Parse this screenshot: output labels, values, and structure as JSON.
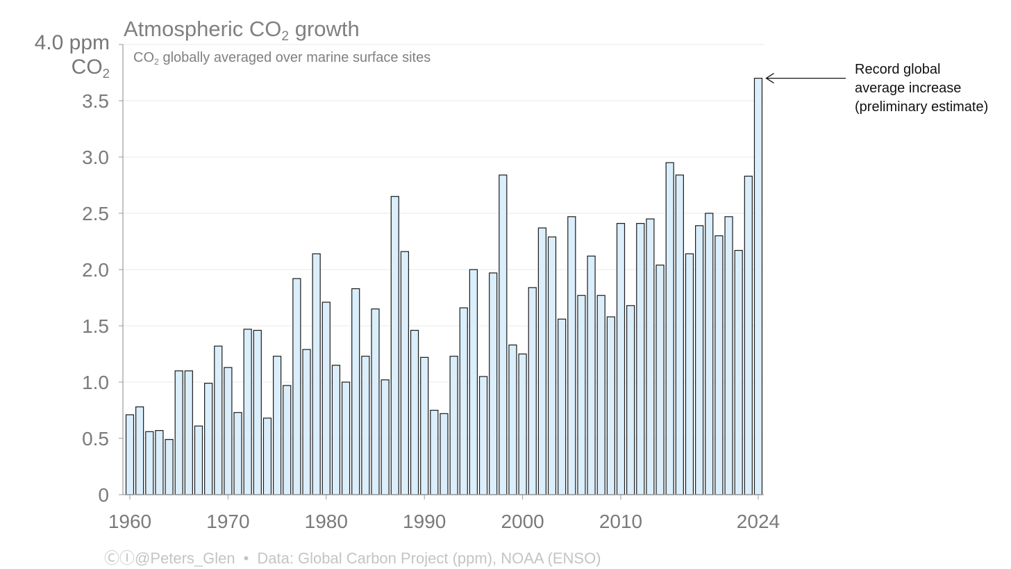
{
  "title": {
    "prefix": "Atmospheric CO",
    "sub": "2",
    "suffix": " growth"
  },
  "subtitle": {
    "prefix": "CO",
    "sub": "2",
    "suffix": " globally averaged over marine surface sites"
  },
  "y_unit": {
    "line1": "4.0 ppm",
    "line2_prefix": "CO",
    "line2_sub": "2"
  },
  "annotation": {
    "lines": [
      "Record global",
      "average increase",
      "(preliminary estimate)"
    ]
  },
  "footer": {
    "icons": "ⒸⒾ",
    "handle": "@Peters_Glen",
    "separator": "•",
    "source": "Data: Global Carbon Project (ppm), NOAA (ENSO)"
  },
  "colors": {
    "bar_fill": "#daeefb",
    "bar_stroke": "#1a1a1a",
    "axis": "#9a9a9a",
    "grid": "#e8e8e8",
    "tick_text": "#7a7a7a"
  },
  "chart_data": {
    "type": "bar",
    "title": "Atmospheric CO2 growth",
    "subtitle": "CO2 globally averaged over marine surface sites",
    "xlabel": "",
    "ylabel": "ppm CO2",
    "ylim": [
      0,
      4.0
    ],
    "yticks": [
      0,
      0.5,
      1.0,
      1.5,
      2.0,
      2.5,
      3.0,
      3.5
    ],
    "ytick_labels": [
      "0",
      "0.5",
      "1.0",
      "1.5",
      "2.0",
      "2.5",
      "3.0",
      "3.5"
    ],
    "xticks": [
      1960,
      1970,
      1980,
      1990,
      2000,
      2010,
      2024
    ],
    "xtick_labels": [
      "1960",
      "1970",
      "1980",
      "1990",
      "2000",
      "2010",
      "2024"
    ],
    "grid": true,
    "x": [
      1960,
      1961,
      1962,
      1963,
      1964,
      1965,
      1966,
      1967,
      1968,
      1969,
      1970,
      1971,
      1972,
      1973,
      1974,
      1975,
      1976,
      1977,
      1978,
      1979,
      1980,
      1981,
      1982,
      1983,
      1984,
      1985,
      1986,
      1987,
      1988,
      1989,
      1990,
      1991,
      1992,
      1993,
      1994,
      1995,
      1996,
      1997,
      1998,
      1999,
      2000,
      2001,
      2002,
      2003,
      2004,
      2005,
      2006,
      2007,
      2008,
      2009,
      2010,
      2011,
      2012,
      2013,
      2014,
      2015,
      2016,
      2017,
      2018,
      2019,
      2020,
      2021,
      2022,
      2023,
      2024
    ],
    "values": [
      0.71,
      0.78,
      0.56,
      0.57,
      0.49,
      1.1,
      1.1,
      0.61,
      0.99,
      1.32,
      1.13,
      0.73,
      1.47,
      1.46,
      0.68,
      1.23,
      0.97,
      1.92,
      1.29,
      2.14,
      1.71,
      1.15,
      1.0,
      1.83,
      1.23,
      1.65,
      1.02,
      2.65,
      2.16,
      1.46,
      1.22,
      0.75,
      0.72,
      1.23,
      1.66,
      2.0,
      1.05,
      1.97,
      2.84,
      1.33,
      1.25,
      1.84,
      2.37,
      2.29,
      1.56,
      2.47,
      1.77,
      2.12,
      1.77,
      1.58,
      2.41,
      1.68,
      2.41,
      2.45,
      2.04,
      2.95,
      2.84,
      2.14,
      2.39,
      2.5,
      2.3,
      2.47,
      2.17,
      2.83,
      3.7
    ]
  }
}
